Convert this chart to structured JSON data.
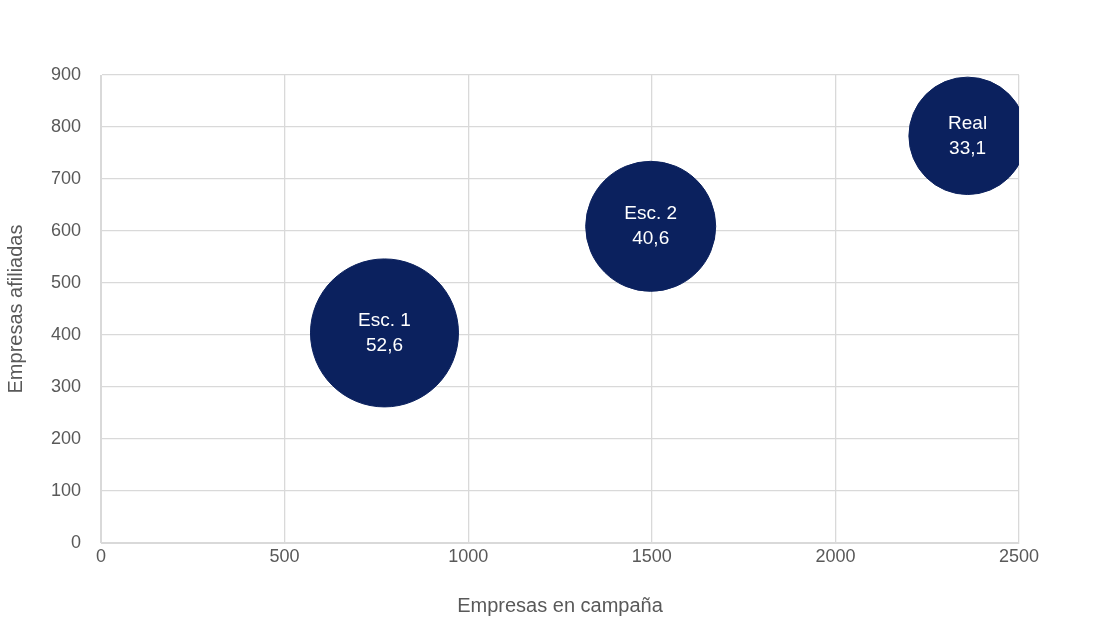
{
  "chart_data": {
    "type": "bubble",
    "xlabel": "Empresas en campaña",
    "ylabel": "Empresas afiliadas",
    "xlim": [
      0,
      2500
    ],
    "xticks": [
      0,
      500,
      1000,
      1500,
      2000,
      2500
    ],
    "ylim": [
      0,
      900
    ],
    "yticks": [
      0,
      100,
      200,
      300,
      400,
      500,
      600,
      700,
      800,
      900
    ],
    "grid": true,
    "legend": false,
    "series": [
      {
        "name": "Esc. 1",
        "color": "#0b215e",
        "x": [
          772
        ],
        "values": [
          404
        ],
        "sizes": [
          52.6
        ],
        "value_labels": [
          "52,6"
        ]
      },
      {
        "name": "Esc. 2",
        "color": "#0b215e",
        "x": [
          1497
        ],
        "values": [
          609
        ],
        "sizes": [
          40.6
        ],
        "value_labels": [
          "40,6"
        ]
      },
      {
        "name": "Real",
        "color": "#0b215e",
        "x": [
          2360
        ],
        "values": [
          783
        ],
        "sizes": [
          33.1
        ],
        "value_labels": [
          "33,1"
        ]
      }
    ]
  }
}
